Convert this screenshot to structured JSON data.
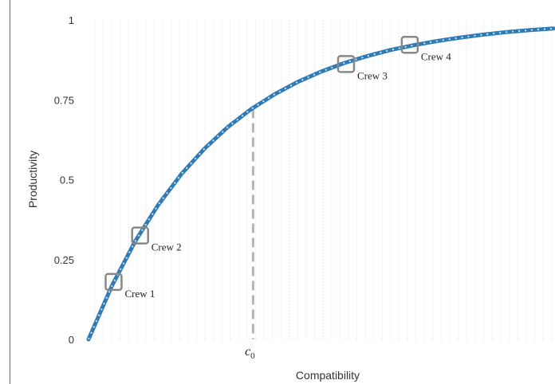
{
  "chart_data": {
    "type": "line",
    "title": "",
    "xlabel": "Compatibility",
    "ylabel": "Productivity",
    "xlim": [
      0,
      1
    ],
    "ylim": [
      0,
      1
    ],
    "y_ticks": [
      "0",
      "0.25",
      "0.5",
      "0.75",
      "1"
    ],
    "x_tick_values": [
      0,
      0.25,
      0.5,
      0.75,
      1
    ],
    "grid": "vertical dotted",
    "curve_color": "#2f7bb5",
    "curve_overlay_color": "#cfe3f0",
    "marker_color": "#888888",
    "c0": {
      "label": "c",
      "sub": "0",
      "x": 0.354,
      "y": 0.722
    },
    "x": [
      0,
      0.05,
      0.1,
      0.15,
      0.2,
      0.25,
      0.3,
      0.35,
      0.4,
      0.45,
      0.5,
      0.55,
      0.6,
      0.65,
      0.7,
      0.75,
      0.8,
      0.85,
      0.9,
      0.95,
      1.0
    ],
    "y": [
      0,
      0.167,
      0.306,
      0.421,
      0.518,
      0.598,
      0.665,
      0.721,
      0.767,
      0.806,
      0.838,
      0.865,
      0.887,
      0.906,
      0.921,
      0.934,
      0.945,
      0.954,
      0.962,
      0.968,
      0.973
    ],
    "points": [
      {
        "label": "Crew 1",
        "x": 0.054,
        "y": 0.18
      },
      {
        "label": "Crew 2",
        "x": 0.111,
        "y": 0.325
      },
      {
        "label": "Crew 3",
        "x": 0.554,
        "y": 0.862
      },
      {
        "label": "Crew 4",
        "x": 0.691,
        "y": 0.922
      }
    ]
  }
}
